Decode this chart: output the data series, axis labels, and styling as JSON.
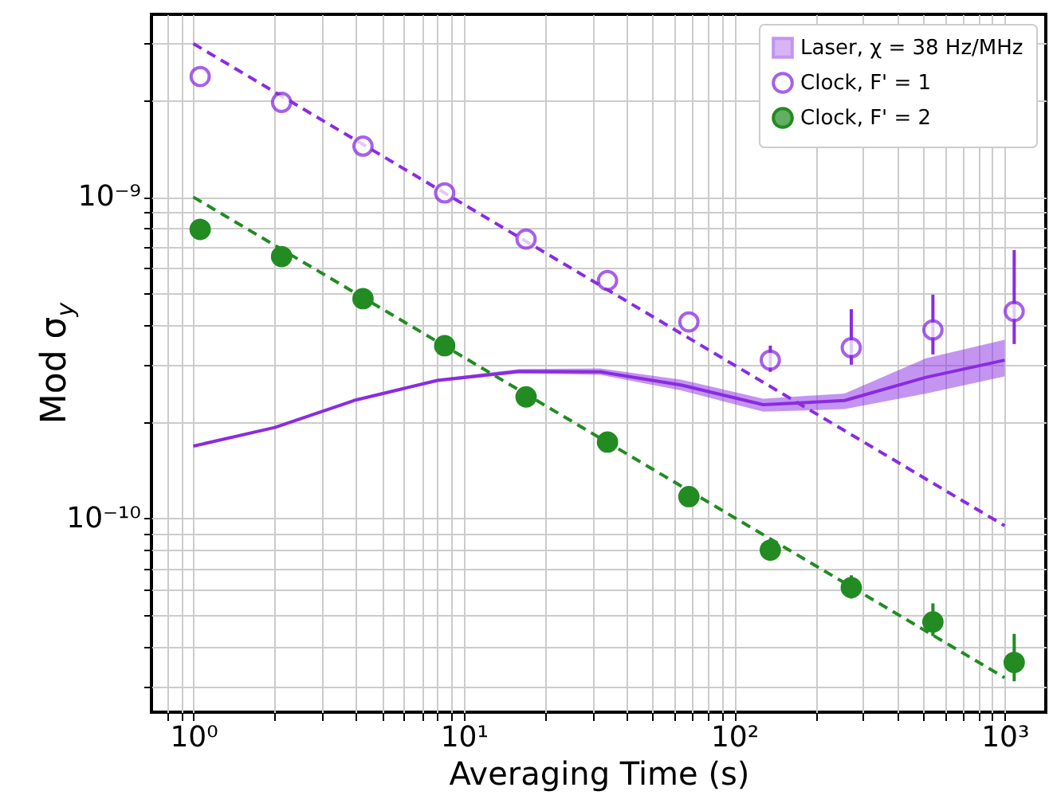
{
  "chart_data": {
    "type": "scatter",
    "xlabel": "Averaging Time (s)",
    "ylabel": "Mod σ$_{y}$",
    "log": "xy",
    "grid": true,
    "legend": "top right",
    "xlim": [
      0.7,
      1420
    ],
    "ylim": [
      2.5e-11,
      3.7e-09
    ],
    "xticks": [
      {
        "value": 0.8,
        "label": null
      },
      {
        "value": 0.9,
        "label": null
      },
      {
        "value": 1,
        "label": "10⁰"
      },
      {
        "value": 2,
        "label": null
      },
      {
        "value": 3,
        "label": null
      },
      {
        "value": 4,
        "label": null
      },
      {
        "value": 5,
        "label": null
      },
      {
        "value": 6,
        "label": null
      },
      {
        "value": 7,
        "label": null
      },
      {
        "value": 8,
        "label": null
      },
      {
        "value": 9,
        "label": null
      },
      {
        "value": 10,
        "label": "10¹"
      },
      {
        "value": 20,
        "label": null
      },
      {
        "value": 30,
        "label": null
      },
      {
        "value": 40,
        "label": null
      },
      {
        "value": 50,
        "label": null
      },
      {
        "value": 60,
        "label": null
      },
      {
        "value": 70,
        "label": null
      },
      {
        "value": 80,
        "label": null
      },
      {
        "value": 90,
        "label": null
      },
      {
        "value": 100,
        "label": "10²"
      },
      {
        "value": 200,
        "label": null
      },
      {
        "value": 300,
        "label": null
      },
      {
        "value": 400,
        "label": null
      },
      {
        "value": 500,
        "label": null
      },
      {
        "value": 600,
        "label": null
      },
      {
        "value": 700,
        "label": null
      },
      {
        "value": 800,
        "label": null
      },
      {
        "value": 900,
        "label": null
      },
      {
        "value": 1000,
        "label": "10³"
      }
    ],
    "yticks": [
      {
        "value": 3e-11,
        "label": null
      },
      {
        "value": 4e-11,
        "label": null
      },
      {
        "value": 5e-11,
        "label": null
      },
      {
        "value": 6e-11,
        "label": null
      },
      {
        "value": 7e-11,
        "label": null
      },
      {
        "value": 8e-11,
        "label": null
      },
      {
        "value": 9e-11,
        "label": null
      },
      {
        "value": 1e-10,
        "label": "10⁻¹⁰"
      },
      {
        "value": 2e-10,
        "label": null
      },
      {
        "value": 3e-10,
        "label": null
      },
      {
        "value": 4e-10,
        "label": null
      },
      {
        "value": 5e-10,
        "label": null
      },
      {
        "value": 6e-10,
        "label": null
      },
      {
        "value": 7e-10,
        "label": null
      },
      {
        "value": 8e-10,
        "label": null
      },
      {
        "value": 9e-10,
        "label": null
      },
      {
        "value": 1e-09,
        "label": "10⁻⁹"
      },
      {
        "value": 2e-09,
        "label": null
      },
      {
        "value": 3e-09,
        "label": null
      }
    ],
    "x": [
      1.06,
      2.12,
      4.24,
      8.5,
      17,
      34,
      68,
      136,
      271,
      543,
      1085
    ],
    "series": [
      {
        "type": "line",
        "name": "Laser, χ = 38 Hz/MHz",
        "color": "#8a2be2",
        "marker": "none",
        "x": [
          1,
          2,
          4,
          8,
          16,
          32,
          64,
          128,
          256,
          512,
          1000
        ],
        "values": [
          1.68e-10,
          1.92e-10,
          2.34e-10,
          2.69e-10,
          2.87e-10,
          2.86e-10,
          2.6e-10,
          2.26e-10,
          2.33e-10,
          2.75e-10,
          3.11e-10
        ],
        "lower": [
          1.67e-10,
          1.91e-10,
          2.32e-10,
          2.66e-10,
          2.83e-10,
          2.8e-10,
          2.5e-10,
          2.15e-10,
          2.19e-10,
          2.45e-10,
          2.77e-10
        ],
        "upper": [
          1.69e-10,
          1.93e-10,
          2.36e-10,
          2.72e-10,
          2.92e-10,
          2.93e-10,
          2.7e-10,
          2.36e-10,
          2.45e-10,
          3.15e-10,
          3.6e-10
        ]
      },
      {
        "type": "line",
        "color": "#8a2be2",
        "marker": "none",
        "line_style": "dashed",
        "x": [
          1,
          1000
        ],
        "values": [
          3e-09,
          9.5e-11
        ]
      },
      {
        "name": "Clock, F' = 1",
        "color": "#8a2be2",
        "marker": "circle",
        "values": [
          2.37e-09,
          1.97e-09,
          1.44e-09,
          1.03e-09,
          7.4e-10,
          5.5e-10,
          4.09e-10,
          3.11e-10,
          3.4e-10,
          3.86e-10,
          4.41e-10
        ],
        "errors": [
          null,
          null,
          null,
          null,
          null,
          null,
          null,
          [
            2.86e-10,
            3.45e-10
          ],
          [
            3.01e-10,
            4.48e-10
          ],
          [
            3.24e-10,
            4.97e-10
          ],
          [
            3.49e-10,
            6.84e-10
          ]
        ]
      },
      {
        "type": "line",
        "color": "#228b22",
        "marker": "none",
        "line_style": "dashed",
        "x": [
          1,
          1000
        ],
        "values": [
          1e-09,
          3.2e-11
        ]
      },
      {
        "name": "Clock, F' = 2",
        "color": "#228b22",
        "marker": "circle",
        "values": [
          7.93e-10,
          6.53e-10,
          4.83e-10,
          3.45e-10,
          2.39e-10,
          1.73e-10,
          1.17e-10,
          7.98e-11,
          6.1e-11,
          4.77e-11,
          3.57e-11
        ],
        "errors": [
          null,
          null,
          null,
          null,
          null,
          null,
          null,
          null,
          [
            5.64e-11,
            6.66e-11
          ],
          [
            4.31e-11,
            5.45e-11
          ],
          [
            3.12e-11,
            4.38e-11
          ]
        ]
      }
    ]
  }
}
